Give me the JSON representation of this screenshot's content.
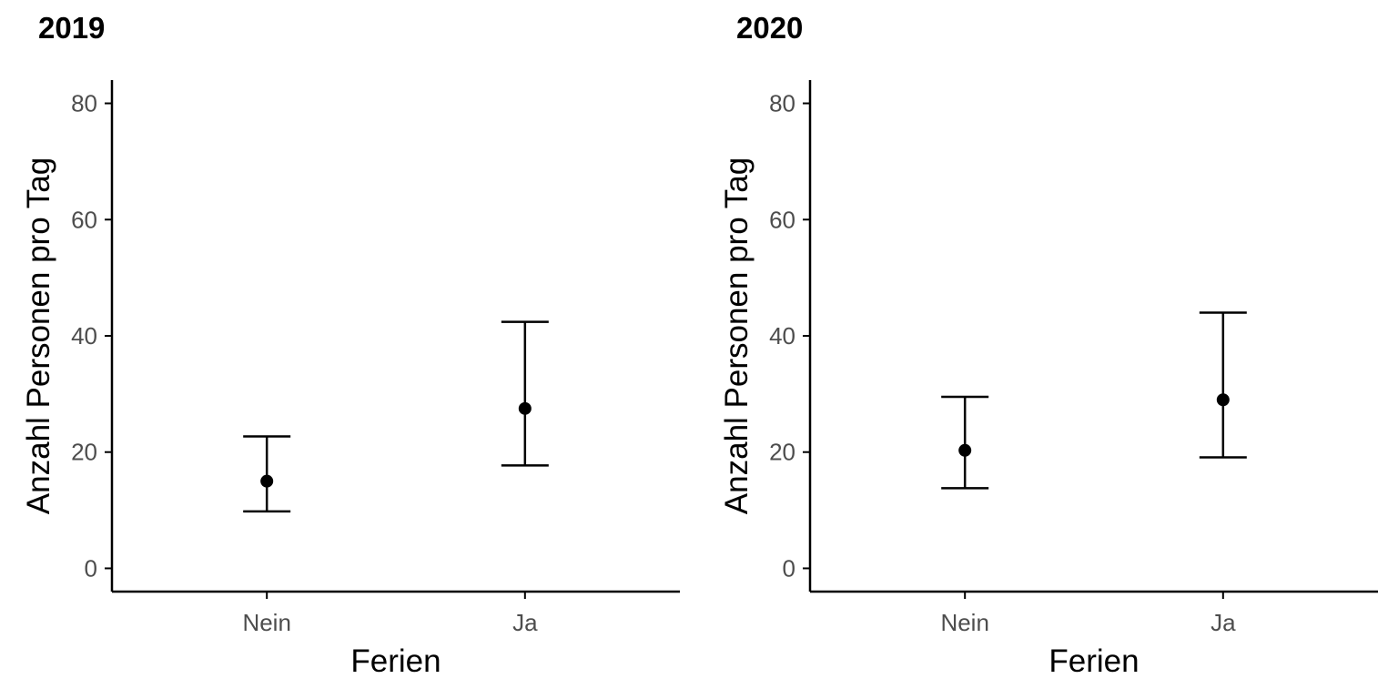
{
  "chart_data": [
    {
      "type": "errorbar",
      "title": "2019",
      "xlabel": "Ferien",
      "ylabel": "Anzahl Personen pro Tag",
      "categories": [
        "Nein",
        "Ja"
      ],
      "values": [
        15.0,
        27.5
      ],
      "lower": [
        9.8,
        17.7
      ],
      "upper": [
        22.7,
        42.4
      ],
      "yticks": [
        0,
        20,
        40,
        60,
        80
      ],
      "ylim": [
        -4,
        84
      ],
      "grid": false,
      "legend": "none"
    },
    {
      "type": "errorbar",
      "title": "2020",
      "xlabel": "Ferien",
      "ylabel": "Anzahl Personen pro Tag",
      "categories": [
        "Nein",
        "Ja"
      ],
      "values": [
        20.3,
        29.0
      ],
      "lower": [
        13.8,
        19.1
      ],
      "upper": [
        29.5,
        44.0
      ],
      "yticks": [
        0,
        20,
        40,
        60,
        80
      ],
      "ylim": [
        -4,
        84
      ],
      "grid": false,
      "legend": "none"
    }
  ],
  "colors": {
    "mark": "#000000",
    "axis": "#000000",
    "tick_text": "#4d4d4d"
  }
}
